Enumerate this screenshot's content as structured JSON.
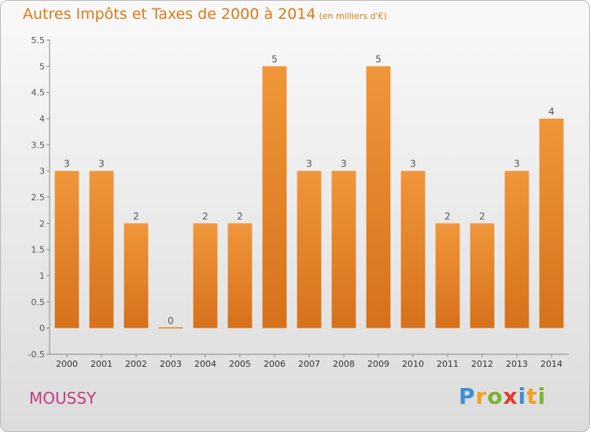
{
  "chart_data": {
    "type": "bar",
    "title": "Autres Impôts et Taxes de 2000 à 2014",
    "subtitle": "(en milliers d'€)",
    "categories": [
      "2000",
      "2001",
      "2002",
      "2003",
      "2004",
      "2005",
      "2006",
      "2007",
      "2008",
      "2009",
      "2010",
      "2011",
      "2012",
      "2013",
      "2014"
    ],
    "values": [
      3,
      3,
      2,
      0,
      2,
      2,
      5,
      3,
      3,
      5,
      3,
      2,
      2,
      3,
      4
    ],
    "data_labels": [
      "3",
      "3",
      "2",
      "0",
      "2",
      "2",
      "5",
      "3",
      "3",
      "5",
      "3",
      "2",
      "2",
      "3",
      "4"
    ],
    "yticks": [
      "-0.5",
      "0",
      "0.5",
      "1",
      "1.5",
      "2",
      "2.5",
      "3",
      "3.5",
      "4",
      "4.5",
      "5",
      "5.5"
    ],
    "ylim": [
      -0.5,
      5.5
    ],
    "grid": false,
    "legend": "none",
    "bar_color": "#f0963a",
    "bar_color_dark": "#d6711b"
  },
  "footer": {
    "city": "MOUSSY",
    "logo_letters": [
      {
        "ch": "P",
        "color": "#3d8fd6"
      },
      {
        "ch": "r",
        "color": "#f1a21f"
      },
      {
        "ch": "o",
        "color": "#7ab530"
      },
      {
        "ch": "x",
        "color": "#e23b2e"
      },
      {
        "ch": "i",
        "color": "#3d8fd6"
      },
      {
        "ch": "t",
        "color": "#f1a21f"
      },
      {
        "ch": "i",
        "color": "#7ab530"
      }
    ]
  }
}
